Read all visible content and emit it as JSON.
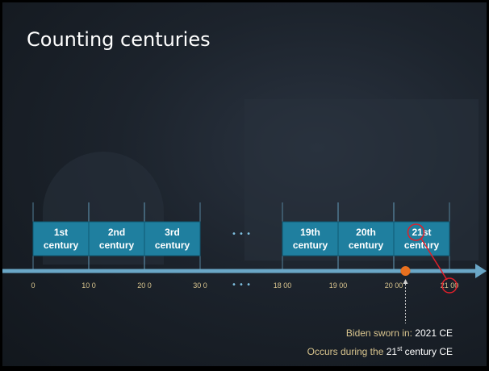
{
  "slide": {
    "title": "Counting centuries",
    "centuries": [
      {
        "ordinal": "1st",
        "word": "century",
        "start": 0,
        "end": 100
      },
      {
        "ordinal": "2nd",
        "word": "century",
        "start": 100,
        "end": 200
      },
      {
        "ordinal": "3rd",
        "word": "century",
        "start": 200,
        "end": 300
      },
      {
        "ordinal": "19th",
        "word": "century",
        "start": 1800,
        "end": 1900
      },
      {
        "ordinal": "20th",
        "word": "century",
        "start": 1900,
        "end": 2000
      },
      {
        "ordinal": "21st",
        "word": "century",
        "start": 2000,
        "end": 2100
      }
    ],
    "ellipsis": "• • •",
    "tick_labels": [
      {
        "value": 0,
        "text": "0"
      },
      {
        "value": 100,
        "text": "10 0"
      },
      {
        "value": 200,
        "text": "20 0"
      },
      {
        "value": 300,
        "text": "30 0"
      },
      {
        "value": 1800,
        "text": "18 00"
      },
      {
        "value": 1900,
        "text": "19 00"
      },
      {
        "value": 2000,
        "text": "20 00"
      },
      {
        "value": 2100,
        "text": "21 00"
      }
    ],
    "marker": {
      "year": 2021
    },
    "highlighted_ordinal": "21st",
    "highlighted_tick": "21 00",
    "caption": {
      "line1_prefix": "Biden sworn in: ",
      "line1_value": "2021 CE",
      "line2_prefix": "Occurs during the ",
      "line2_num": "21",
      "line2_sup": "st",
      "line2_suffix": " century CE"
    },
    "colors": {
      "box": "#1f7f9f",
      "box_border": "#0f5a73",
      "axis": "#6aa7c7",
      "tick_label": "#d8c48e",
      "marker": "#e8701f",
      "annotation": "#e0202a"
    }
  }
}
